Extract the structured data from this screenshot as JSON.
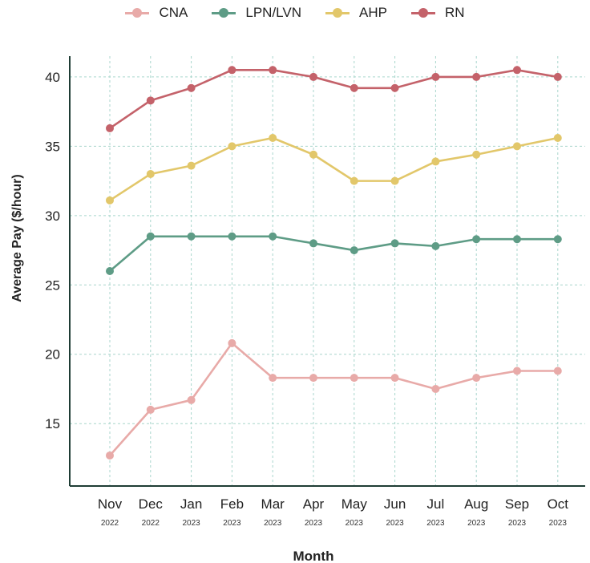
{
  "chart_data": {
    "type": "line",
    "xlabel": "Month",
    "ylabel": "Average Pay ($/hour)",
    "ylim": [
      10.5,
      41.5
    ],
    "yticks": [
      15,
      20,
      25,
      30,
      35,
      40
    ],
    "grid": true,
    "legend_position": "top",
    "categories": [
      "Nov",
      "Dec",
      "Jan",
      "Feb",
      "Mar",
      "Apr",
      "May",
      "Jun",
      "Jul",
      "Aug",
      "Sep",
      "Oct"
    ],
    "category_years": [
      "2022",
      "2022",
      "2023",
      "2023",
      "2023",
      "2023",
      "2023",
      "2023",
      "2023",
      "2023",
      "2023",
      "2023"
    ],
    "series": [
      {
        "name": "CNA",
        "color": "#e8aaa8",
        "values": [
          12.7,
          16.0,
          16.7,
          20.8,
          18.3,
          18.3,
          18.3,
          18.3,
          17.5,
          18.3,
          18.8,
          18.8
        ]
      },
      {
        "name": "LPN/LVN",
        "color": "#5e9c86",
        "values": [
          26.0,
          28.5,
          28.5,
          28.5,
          28.5,
          28.0,
          27.5,
          28.0,
          27.8,
          28.3,
          28.3,
          28.3
        ]
      },
      {
        "name": "AHP",
        "color": "#e2c76a",
        "values": [
          31.1,
          33.0,
          33.6,
          35.0,
          35.6,
          34.4,
          32.5,
          32.5,
          33.9,
          34.4,
          35.0,
          35.6
        ]
      },
      {
        "name": "RN",
        "color": "#c4626a",
        "values": [
          36.3,
          38.3,
          39.2,
          40.5,
          40.5,
          40.0,
          39.2,
          39.2,
          40.0,
          40.0,
          40.5,
          40.0
        ]
      }
    ]
  }
}
